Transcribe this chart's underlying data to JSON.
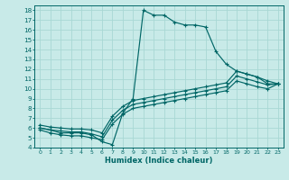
{
  "xlabel": "Humidex (Indice chaleur)",
  "bg_color": "#c8eae8",
  "grid_color": "#a8d8d4",
  "line_color": "#006666",
  "xlim": [
    -0.5,
    23.5
  ],
  "ylim": [
    4,
    18.5
  ],
  "xticks": [
    0,
    1,
    2,
    3,
    4,
    5,
    6,
    7,
    8,
    9,
    10,
    11,
    12,
    13,
    14,
    15,
    16,
    17,
    18,
    19,
    20,
    21,
    22,
    23
  ],
  "yticks": [
    4,
    5,
    6,
    7,
    8,
    9,
    10,
    11,
    12,
    13,
    14,
    15,
    16,
    17,
    18
  ],
  "lines": [
    {
      "x": [
        0,
        1,
        2,
        3,
        4,
        5,
        6,
        7,
        8,
        9,
        10,
        11,
        12,
        13,
        14,
        15,
        16,
        17,
        18,
        19,
        20,
        21,
        22,
        23
      ],
      "y": [
        6,
        5.8,
        5.5,
        5.5,
        5.5,
        5.3,
        4.6,
        4.3,
        7.5,
        9.0,
        18.0,
        17.5,
        17.5,
        16.8,
        16.5,
        16.5,
        16.3,
        13.8,
        12.5,
        11.8,
        11.5,
        11.2,
        10.5,
        10.5
      ]
    },
    {
      "x": [
        0,
        1,
        2,
        3,
        4,
        5,
        6,
        7,
        8,
        9,
        10,
        11,
        12,
        13,
        14,
        15,
        16,
        17,
        18,
        19,
        20,
        21,
        22,
        23
      ],
      "y": [
        6.3,
        6.1,
        6.0,
        5.9,
        5.9,
        5.8,
        5.5,
        7.2,
        8.2,
        8.8,
        9.0,
        9.2,
        9.4,
        9.6,
        9.8,
        10.0,
        10.2,
        10.4,
        10.6,
        11.8,
        11.5,
        11.2,
        10.8,
        10.5
      ]
    },
    {
      "x": [
        0,
        1,
        2,
        3,
        4,
        5,
        6,
        7,
        8,
        9,
        10,
        11,
        12,
        13,
        14,
        15,
        16,
        17,
        18,
        19,
        20,
        21,
        22,
        23
      ],
      "y": [
        6.0,
        5.8,
        5.7,
        5.6,
        5.6,
        5.4,
        5.1,
        6.8,
        7.8,
        8.4,
        8.6,
        8.8,
        9.0,
        9.2,
        9.4,
        9.6,
        9.8,
        10.0,
        10.2,
        11.3,
        11.0,
        10.7,
        10.4,
        10.5
      ]
    },
    {
      "x": [
        0,
        1,
        2,
        3,
        4,
        5,
        6,
        7,
        8,
        9,
        10,
        11,
        12,
        13,
        14,
        15,
        16,
        17,
        18,
        19,
        20,
        21,
        22,
        23
      ],
      "y": [
        5.8,
        5.5,
        5.3,
        5.2,
        5.2,
        5.0,
        4.8,
        6.4,
        7.4,
        8.0,
        8.2,
        8.4,
        8.6,
        8.8,
        9.0,
        9.2,
        9.4,
        9.6,
        9.8,
        10.8,
        10.5,
        10.2,
        10.0,
        10.5
      ]
    }
  ]
}
